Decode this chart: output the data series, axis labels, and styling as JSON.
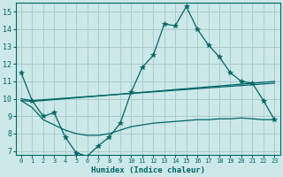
{
  "xlabel": "Humidex (Indice chaleur)",
  "bg_color": "#cce8e8",
  "grid_color": "#aacccc",
  "line_color": "#006666",
  "xlim": [
    -0.5,
    23.5
  ],
  "ylim": [
    6.8,
    15.5
  ],
  "yticks": [
    7,
    8,
    9,
    10,
    11,
    12,
    13,
    14,
    15
  ],
  "xticks": [
    0,
    1,
    2,
    3,
    4,
    5,
    6,
    7,
    8,
    9,
    10,
    11,
    12,
    13,
    14,
    15,
    16,
    17,
    18,
    19,
    20,
    21,
    22,
    23
  ],
  "series1_x": [
    0,
    1,
    2,
    3,
    4,
    5,
    6,
    7,
    8,
    9,
    10,
    11,
    12,
    13,
    14,
    15,
    16,
    17,
    18,
    19,
    20,
    21,
    22,
    23
  ],
  "series1_y": [
    11.5,
    9.9,
    9.0,
    9.2,
    7.8,
    6.9,
    6.7,
    7.3,
    7.8,
    8.6,
    10.4,
    11.8,
    12.5,
    14.3,
    14.2,
    15.3,
    14.0,
    13.1,
    12.4,
    11.5,
    11.0,
    10.9,
    9.9,
    8.8
  ],
  "series2_x": [
    0,
    1,
    23
  ],
  "series2_y": [
    10.0,
    9.9,
    10.9
  ],
  "series3_x": [
    0,
    1,
    23
  ],
  "series3_y": [
    9.9,
    9.85,
    11.0
  ],
  "series4_x": [
    0,
    1,
    2,
    3,
    4,
    5,
    6,
    7,
    8,
    9,
    10,
    11,
    12,
    13,
    14,
    15,
    16,
    17,
    18,
    19,
    20,
    21,
    22,
    23
  ],
  "series4_y": [
    9.9,
    9.5,
    8.8,
    8.5,
    8.2,
    8.0,
    7.9,
    7.9,
    8.0,
    8.2,
    8.4,
    8.5,
    8.6,
    8.65,
    8.7,
    8.75,
    8.8,
    8.8,
    8.85,
    8.85,
    8.9,
    8.85,
    8.8,
    8.8
  ]
}
